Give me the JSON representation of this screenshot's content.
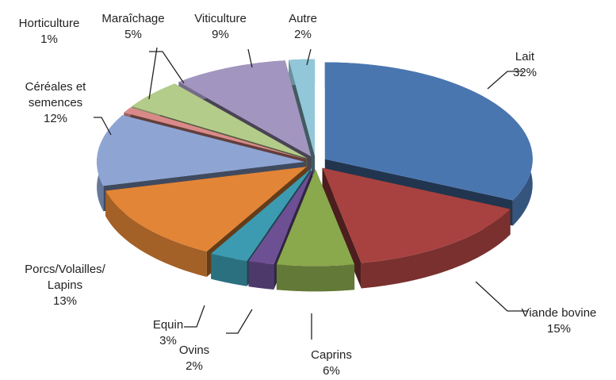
{
  "chart_data": {
    "type": "pie3d",
    "categories": [
      "Lait",
      "Viande bovine",
      "Caprins",
      "Ovins",
      "Equin",
      "Porcs/Volailles/ Lapins",
      "Céréales et semences",
      "Horticulture",
      "Maraîchage",
      "Viticulture",
      "Autre"
    ],
    "values": [
      32,
      15,
      6,
      2,
      3,
      13,
      12,
      1,
      5,
      9,
      2
    ],
    "value_labels": [
      "32%",
      "15%",
      "6%",
      "2%",
      "3%",
      "13%",
      "12%",
      "1%",
      "5%",
      "9%",
      "2%"
    ],
    "colors": [
      "#4a76b0",
      "#a84240",
      "#8aa84c",
      "#6d4f94",
      "#3c9bb1",
      "#e28536",
      "#8ea5d4",
      "#d98a88",
      "#b4cc8a",
      "#a295bf",
      "#92c7d9"
    ]
  }
}
